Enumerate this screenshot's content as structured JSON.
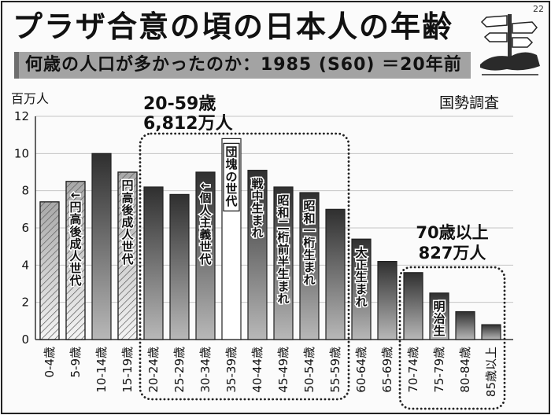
{
  "page_number": "22",
  "title": "プラザ合意の頃の日本人の年齢",
  "banner": "何歳の人口が多かったのか：1985 (S60) ＝20年前",
  "source": "国勢調査",
  "icon": "signpost-icon",
  "colors": {
    "banner": "#a3a3a3",
    "bar_dark_top": "#2f2f2f",
    "bar_dark_bottom": "#b8b8b8",
    "bar_hatch_line": "#4a4a4a",
    "ink": "#111111"
  },
  "chart_data": {
    "type": "bar",
    "ylabel": "百万人",
    "ylim": [
      0,
      12
    ],
    "yticks": [
      0,
      2,
      4,
      6,
      8,
      10,
      12
    ],
    "grid": true,
    "categories": [
      "0-4歳",
      "5-9歳",
      "10-14歳",
      "15-19歳",
      "20-24歳",
      "25-29歳",
      "30-34歳",
      "35-39歳",
      "40-44歳",
      "45-49歳",
      "50-54歳",
      "55-59歳",
      "60-64歳",
      "65-69歳",
      "70-74歳",
      "75-79歳",
      "80-84歳",
      "85歳以上"
    ],
    "values": [
      7.4,
      8.5,
      10.0,
      9.0,
      8.2,
      7.8,
      9.0,
      10.8,
      9.1,
      8.2,
      7.9,
      7.0,
      5.4,
      4.2,
      3.6,
      2.5,
      1.5,
      0.8
    ],
    "bar_labels": [
      "",
      "←円高後成人世代",
      "",
      "円高後成人世代",
      "",
      "",
      "←個人主義世代",
      "団塊の世代",
      "戦中生まれ",
      "昭和二桁前半生まれ",
      "昭和一桁生まれ",
      "",
      "大正生まれ",
      "",
      "",
      "明治生",
      "",
      ""
    ],
    "bar_styles": [
      "hatch",
      "hatch",
      "dark",
      "hatch",
      "dark",
      "dark",
      "dark",
      "white",
      "dark",
      "dark",
      "dark",
      "dark",
      "dark",
      "dark",
      "dark",
      "dark",
      "dark",
      "dark"
    ],
    "annotations": [
      {
        "label": "20-59歳",
        "total": "6,812万人",
        "from": "20-24歳",
        "to": "55-59歳"
      },
      {
        "label": "70歳以上",
        "total": "827万人",
        "from": "70-74歳",
        "to": "85歳以上"
      }
    ]
  }
}
